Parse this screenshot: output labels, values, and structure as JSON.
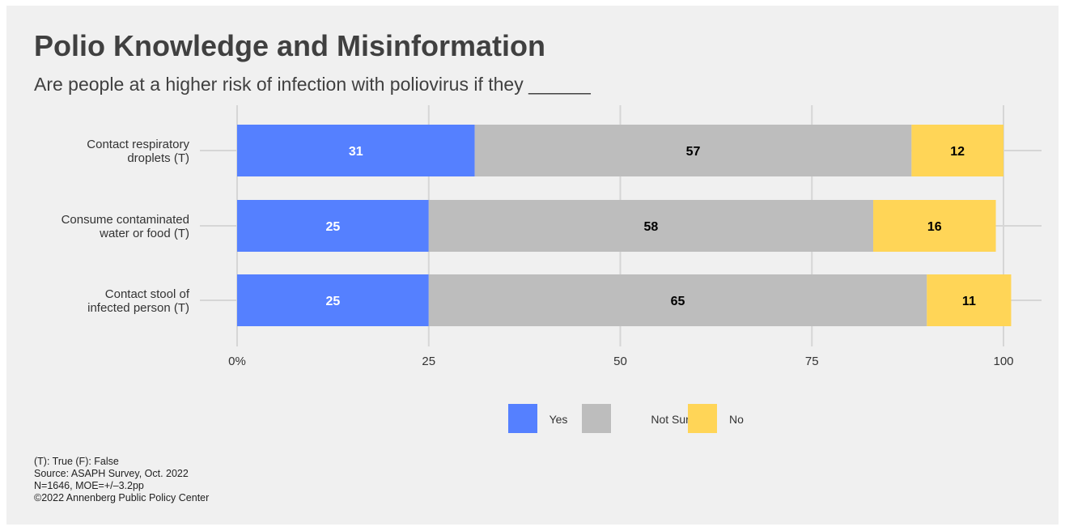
{
  "title": "Polio Knowledge and Misinformation",
  "subtitle": "Are people at a higher risk of infection with poliovirus if they ______",
  "chart_data": {
    "type": "bar",
    "orientation": "horizontal",
    "stacked": true,
    "categories": [
      [
        "Contact respiratory",
        "droplets (T)"
      ],
      [
        "Consume contaminated",
        "water or food (T)"
      ],
      [
        "Contact stool of",
        "infected person (T)"
      ]
    ],
    "series": [
      {
        "name": "Yes",
        "values": [
          31,
          25,
          25
        ],
        "color": "#5580ff",
        "label_color": "#ffffff"
      },
      {
        "name": "Not Sure",
        "values": [
          57,
          58,
          65
        ],
        "color": "#bdbdbd",
        "label_color": "#000000"
      },
      {
        "name": "No",
        "values": [
          12,
          16,
          11
        ],
        "color": "#ffd557",
        "label_color": "#000000"
      }
    ],
    "data_labels": [
      [
        "31",
        "25",
        "25"
      ],
      [
        "57",
        "58",
        "65"
      ],
      [
        "12",
        "16",
        "11"
      ]
    ],
    "xlim": [
      0,
      100
    ],
    "xticks": [
      0,
      25,
      50,
      75,
      100
    ],
    "xtick_labels": [
      "0%",
      "25",
      "50",
      "75",
      "100"
    ],
    "grid": true,
    "legend_position": "bottom"
  },
  "notes": [
    "(T): True (F): False",
    "Source: ASAPH Survey, Oct. 2022",
    "N=1646, MOE=+/–3.2pp",
    "©2022 Annenberg Public Policy Center"
  ]
}
